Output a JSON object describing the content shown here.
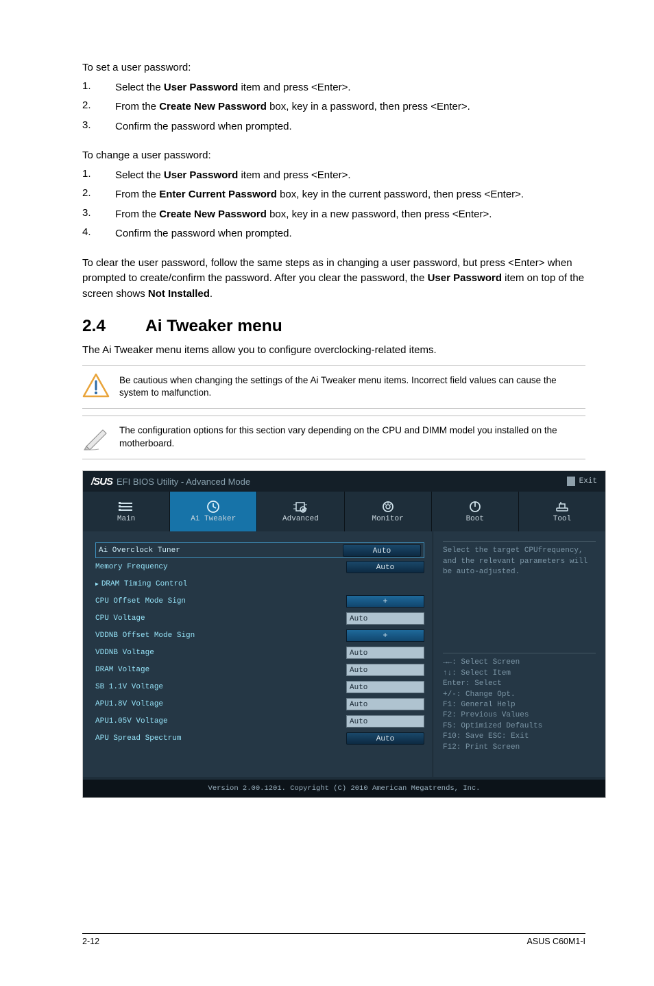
{
  "set_pw_intro": "To set a user password:",
  "set_pw_steps": [
    {
      "n": "1.",
      "pre": "Select the ",
      "bold": "User Password",
      "post": " item and press <Enter>."
    },
    {
      "n": "2.",
      "pre": "From the ",
      "bold": "Create New Password",
      "post": " box, key in a password, then press <Enter>."
    },
    {
      "n": "3.",
      "pre": "Confirm the password when prompted.",
      "bold": "",
      "post": ""
    }
  ],
  "change_pw_intro": "To change a user password:",
  "change_pw_steps": [
    {
      "n": "1.",
      "pre": "Select the ",
      "bold": "User Password",
      "post": " item and press <Enter>."
    },
    {
      "n": "2.",
      "pre": "From the ",
      "bold": "Enter Current Password",
      "post": " box, key in the current password, then press <Enter>."
    },
    {
      "n": "3.",
      "pre": "From the ",
      "bold": "Create New Password",
      "post": " box, key in a new password, then press <Enter>."
    },
    {
      "n": "4.",
      "pre": "Confirm the password when prompted.",
      "bold": "",
      "post": ""
    }
  ],
  "clear_pw_para_pre": "To clear the user password, follow the same steps as in changing a user password, but press <Enter> when prompted to create/confirm the password. After you clear the password, the ",
  "clear_pw_bold1": "User Password",
  "clear_pw_mid": " item on top of the screen shows ",
  "clear_pw_bold2": "Not Installed",
  "clear_pw_end": ".",
  "section_num": "2.4",
  "section_title": "Ai Tweaker menu",
  "section_intro": "The Ai Tweaker menu items allow you to configure overclocking-related items.",
  "callout1": "Be cautious when changing the settings of the Ai Tweaker menu items. Incorrect field values can cause the system to malfunction.",
  "callout2": "The configuration options for this section vary depending on the CPU and DIMM model you installed on the motherboard.",
  "bios": {
    "logo": "/SUS",
    "header_title": "EFI BIOS Utility - Advanced Mode",
    "exit": "Exit",
    "tabs": [
      {
        "label": "Main",
        "icon": "menu"
      },
      {
        "label": "Ai Tweaker",
        "icon": "clock",
        "active": true
      },
      {
        "label": "Advanced",
        "icon": "chip"
      },
      {
        "label": "Monitor",
        "icon": "monitor"
      },
      {
        "label": "Boot",
        "icon": "power"
      },
      {
        "label": "Tool",
        "icon": "tool"
      }
    ],
    "settings": [
      {
        "label": "Ai Overclock Tuner",
        "type": "pill",
        "value": "Auto",
        "highlight": true
      },
      {
        "label": "Memory Frequency",
        "type": "pill",
        "value": "Auto"
      },
      {
        "label": "DRAM Timing Control",
        "type": "arrow"
      },
      {
        "label": "CPU Offset Mode Sign",
        "type": "sign",
        "value": "+"
      },
      {
        "label": "CPU Voltage",
        "type": "field",
        "value": "Auto"
      },
      {
        "label": "VDDNB Offset Mode Sign",
        "type": "sign",
        "value": "+"
      },
      {
        "label": "VDDNB Voltage",
        "type": "field",
        "value": "Auto"
      },
      {
        "label": "DRAM Voltage",
        "type": "field",
        "value": "Auto"
      },
      {
        "label": "SB 1.1V Voltage",
        "type": "field",
        "value": "Auto"
      },
      {
        "label": "APU1.8V Voltage",
        "type": "field",
        "value": "Auto"
      },
      {
        "label": "APU1.05V Voltage",
        "type": "field",
        "value": "Auto"
      },
      {
        "label": "APU Spread Spectrum",
        "type": "pill",
        "value": "Auto"
      }
    ],
    "right_hint": "Select the target CPUfrequency, and the relevant parameters will be auto-adjusted.",
    "right_help": [
      "→←: Select Screen",
      "↑↓: Select Item",
      "Enter: Select",
      "+/-: Change Opt.",
      "F1: General Help",
      "F2: Previous Values",
      "F5: Optimized Defaults",
      "F10: Save  ESC: Exit",
      "F12: Print Screen"
    ],
    "footer": "Version 2.00.1201. Copyright (C) 2010 American Megatrends, Inc."
  },
  "page_num": "2-12",
  "product": "ASUS C60M1-I"
}
